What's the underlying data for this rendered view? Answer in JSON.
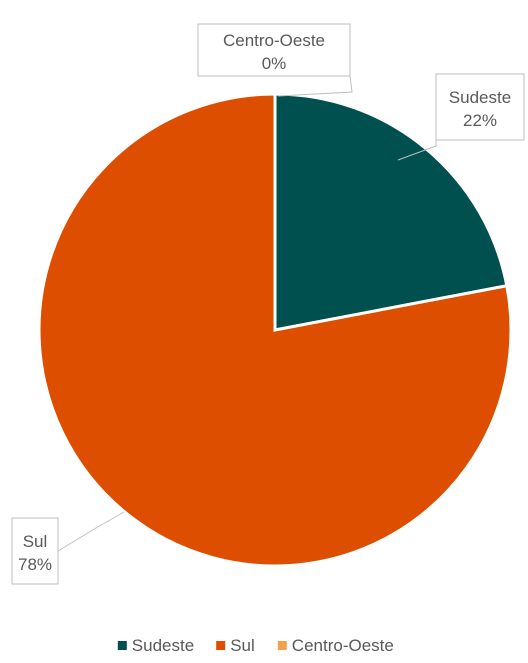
{
  "chart_data": {
    "type": "pie",
    "title": "",
    "categories": [
      "Sudeste",
      "Sul",
      "Centro-Oeste"
    ],
    "values": [
      22,
      78,
      0
    ],
    "value_labels": [
      "22%",
      "78%",
      "0%"
    ],
    "colors": [
      "#00504f",
      "#dd4e00",
      "#f4a14b"
    ],
    "legend_position": "bottom",
    "legend": [
      "Sudeste",
      "Sul",
      "Centro-Oeste"
    ]
  }
}
